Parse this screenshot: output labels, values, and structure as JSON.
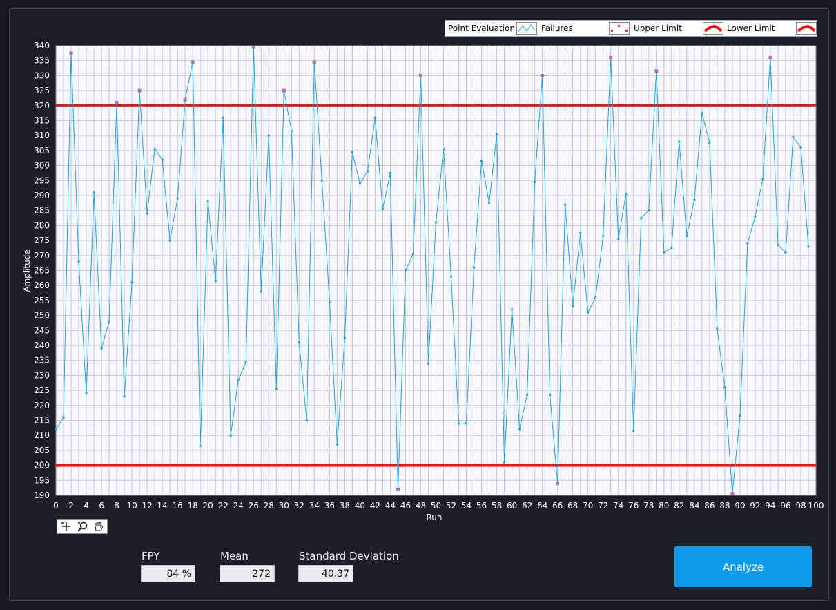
{
  "chart_data": {
    "type": "line",
    "xlabel": "Run",
    "ylabel": "Amplitude",
    "xlim": [
      0,
      100
    ],
    "ylim": [
      190,
      340
    ],
    "x_ticks": [
      "0",
      "2",
      "4",
      "6",
      "8",
      "10",
      "12",
      "14",
      "16",
      "18",
      "20",
      "22",
      "24",
      "26",
      "28",
      "30",
      "32",
      "34",
      "36",
      "38",
      "40",
      "42",
      "44",
      "46",
      "48",
      "50",
      "52",
      "54",
      "56",
      "58",
      "60",
      "62",
      "64",
      "66",
      "68",
      "70",
      "72",
      "74",
      "76",
      "78",
      "80",
      "82",
      "84",
      "86",
      "88",
      "90",
      "92",
      "94",
      "96",
      "98",
      "100"
    ],
    "y_ticks": [
      "190",
      "195",
      "200",
      "205",
      "210",
      "215",
      "220",
      "225",
      "230",
      "235",
      "240",
      "245",
      "250",
      "255",
      "260",
      "265",
      "270",
      "275",
      "280",
      "285",
      "290",
      "295",
      "300",
      "305",
      "310",
      "315",
      "320",
      "325",
      "330",
      "335",
      "340"
    ],
    "grid": true,
    "upper_limit": 320,
    "lower_limit": 200,
    "series": [
      {
        "name": "Point Evaluation",
        "x": [
          0,
          1,
          2,
          3,
          4,
          5,
          6,
          7,
          8,
          9,
          10,
          11,
          12,
          13,
          14,
          15,
          16,
          17,
          18,
          19,
          20,
          21,
          22,
          23,
          24,
          25,
          26,
          27,
          28,
          29,
          30,
          31,
          32,
          33,
          34,
          35,
          36,
          37,
          38,
          39,
          40,
          41,
          42,
          43,
          44,
          45,
          46,
          47,
          48,
          49,
          50,
          51,
          52,
          53,
          54,
          55,
          56,
          57,
          58,
          59,
          60,
          61,
          62,
          63,
          64,
          65,
          66,
          67,
          68,
          69,
          70,
          71,
          72,
          73,
          74,
          75,
          76,
          77,
          78,
          79,
          80,
          81,
          82,
          83,
          84,
          85,
          86,
          87,
          88,
          89,
          90,
          91,
          92,
          93,
          94,
          95,
          96,
          97,
          98,
          99
        ],
        "y": [
          212,
          216,
          337.5,
          268,
          224,
          291,
          239,
          248,
          321,
          223,
          261,
          325,
          284,
          305.5,
          302,
          275,
          289,
          322,
          334.5,
          206.5,
          288,
          261.5,
          316,
          210,
          228.5,
          234.5,
          339.5,
          258,
          310,
          225.5,
          325,
          311.5,
          241,
          215,
          334.5,
          295,
          254.5,
          207,
          242.5,
          304.5,
          294,
          298,
          316,
          285.5,
          297.5,
          192,
          265,
          270.5,
          330,
          234,
          281,
          305.5,
          263,
          214,
          214,
          266,
          301.5,
          287.5,
          310.5,
          201,
          252,
          212,
          223.5,
          294.5,
          330,
          223.5,
          194,
          287,
          253,
          277.5,
          251,
          256,
          276.5,
          336,
          275.5,
          290.5,
          211.5,
          282.5,
          285,
          331.5,
          271,
          272.5,
          308,
          276.5,
          288.5,
          317.5,
          307.5,
          245.5,
          226,
          190.5,
          216.5,
          274,
          283,
          295.5,
          336,
          273.5,
          271,
          309.5,
          306,
          273
        ]
      }
    ],
    "failures_x": [
      2,
      8,
      11,
      17,
      18,
      26,
      30,
      34,
      45,
      48,
      64,
      66,
      73,
      79,
      89,
      94
    ]
  },
  "legend": {
    "point_evaluation": "Point Evaluation",
    "failures": "Failures",
    "upper_limit": "Upper Limit",
    "lower_limit": "Lower Limit"
  },
  "toolbar": {
    "icons": [
      "crosshair-icon",
      "zoom-icon",
      "pan-hand-icon"
    ]
  },
  "stats": {
    "fpy_label": "FPY",
    "fpy_value": "84 %",
    "mean_label": "Mean",
    "mean_value": "272",
    "std_label": "Standard Deviation",
    "std_value": "40.37"
  },
  "analyze_label": "Analyze",
  "colors": {
    "background": "#1a1f29",
    "plot_background": "#f7f8fb",
    "grid": "#c6c3e6",
    "series": "#1ca3e0",
    "failure_marker": "#b16fa8",
    "limit": "#ee1111",
    "accent": "#0c9ae9"
  }
}
